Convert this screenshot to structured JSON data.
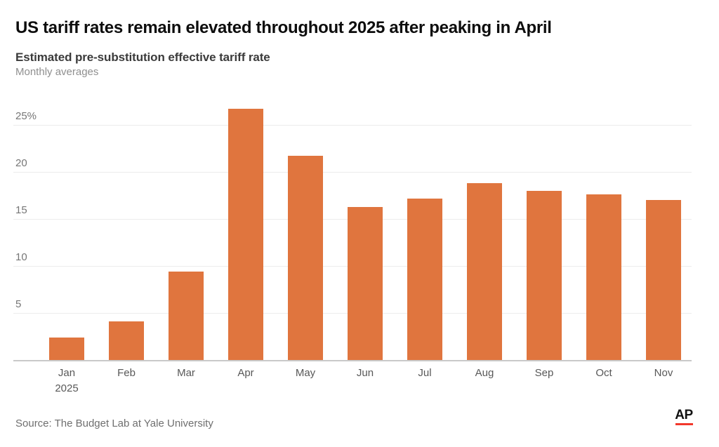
{
  "header": {
    "title": "US tariff rates remain elevated throughout 2025 after peaking in April",
    "subtitle": "Estimated pre-substitution effective tariff rate",
    "note": "Monthly averages"
  },
  "footer": {
    "source": "Source: The Budget Lab at Yale University",
    "logo_text": "AP"
  },
  "colors": {
    "bar": "#E0753E",
    "gridline": "#ececec",
    "baseline": "#c9c9c9",
    "logo_underline": "#F2382C"
  },
  "chart_data": {
    "type": "bar",
    "title": "US tariff rates remain elevated throughout 2025 after peaking in April",
    "subtitle": "Estimated pre-substitution effective tariff rate",
    "note": "Monthly averages",
    "unit": "percent",
    "categories": [
      "Jan",
      "Feb",
      "Mar",
      "Apr",
      "May",
      "Jun",
      "Jul",
      "Aug",
      "Sep",
      "Oct",
      "Nov"
    ],
    "x_axis_year_label": "2025",
    "x_axis_year_under_category": "Jan",
    "values": [
      2.4,
      4.1,
      9.4,
      26.7,
      21.7,
      16.3,
      17.2,
      18.8,
      18.0,
      17.6,
      17.0
    ],
    "y_ticks": [
      {
        "value": 25,
        "label": "25%"
      },
      {
        "value": 20,
        "label": "20"
      },
      {
        "value": 15,
        "label": "15"
      },
      {
        "value": 10,
        "label": "10"
      },
      {
        "value": 5,
        "label": "5"
      }
    ],
    "ylim": [
      0,
      27.5
    ],
    "grid": true,
    "legend": false,
    "bar_color": "#E0753E"
  }
}
